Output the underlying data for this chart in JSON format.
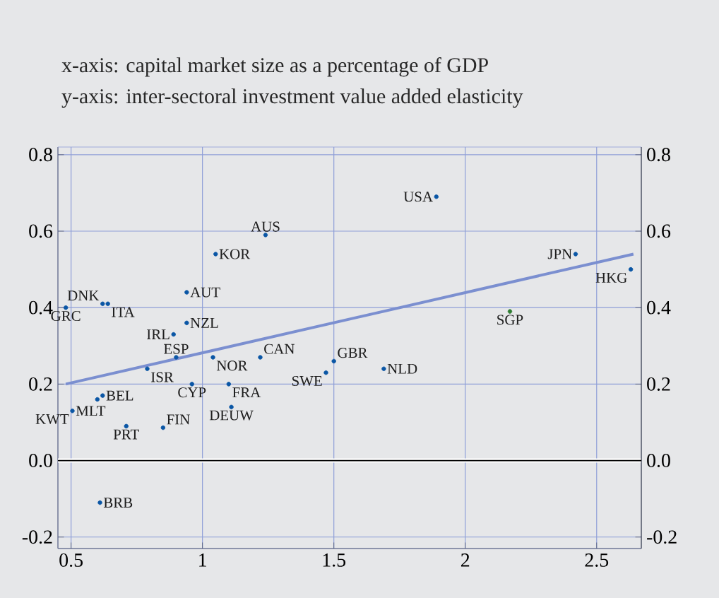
{
  "chart_data": {
    "type": "scatter",
    "title": "x-axis: capital market size as a percentage of GDP",
    "subtitle": "y-axis: inter-sectoral investment value added elasticity",
    "xlim": [
      0.45,
      2.67
    ],
    "ylim": [
      -0.23,
      0.82
    ],
    "y2lim": [
      -0.23,
      0.82
    ],
    "xticks": [
      0.5,
      1,
      1.5,
      2,
      2.5
    ],
    "yticks": [
      -0.2,
      {
        "value": 0,
        "label": "0.0"
      },
      0.2,
      0.4,
      0.6,
      0.8
    ],
    "y2ticks": [
      -0.2,
      {
        "value": 0,
        "label": "0.0"
      },
      0.2,
      0.4,
      0.6,
      0.8
    ],
    "grid": true,
    "ref_lines": [
      {
        "axis": "y",
        "value": 0,
        "color": "#000000"
      }
    ],
    "series": [
      {
        "marker": "circle",
        "x": [
          0.48,
          0.62,
          0.64,
          0.94,
          0.94,
          0.89,
          0.9,
          0.79,
          1.04,
          1.22,
          1.47,
          1.5,
          0.96,
          1.1,
          0.62,
          0.6,
          0.505,
          0.71,
          0.85,
          1.11,
          1.05,
          1.24,
          1.89,
          2.42,
          2.63,
          2.17,
          1.69,
          0.61
        ],
        "values": [
          0.4,
          0.41,
          0.41,
          0.44,
          0.36,
          0.33,
          0.27,
          0.24,
          0.27,
          0.27,
          0.23,
          0.26,
          0.2,
          0.2,
          0.17,
          0.16,
          0.13,
          0.09,
          0.086,
          0.14,
          0.54,
          0.59,
          0.69,
          0.54,
          0.5,
          0.39,
          0.24,
          -0.11
        ],
        "colors": [
          "#0a56a5",
          "#0a56a5",
          "#0a56a5",
          "#0a56a5",
          "#0a56a5",
          "#0a56a5",
          "#0a56a5",
          "#0a56a5",
          "#0a56a5",
          "#0a56a5",
          "#0a56a5",
          "#0a56a5",
          "#0a56a5",
          "#0a56a5",
          "#0a56a5",
          "#0a56a5",
          "#0a56a5",
          "#0a56a5",
          "#0a56a5",
          "#0a56a5",
          "#0a56a5",
          "#0a56a5",
          "#0a56a5",
          "#0a56a5",
          "#0a56a5",
          "#2e7d32",
          "#0a56a5",
          "#0a56a5"
        ]
      },
      {
        "type": "line",
        "marker": "none",
        "line_style": "solid",
        "color": "#7b8fd0",
        "x": [
          0.48,
          2.64
        ],
        "values": [
          0.2,
          0.54
        ]
      }
    ],
    "annotations": [
      {
        "text": "GRC",
        "x": 0.48,
        "y": 0.4
      },
      {
        "text": "DNK",
        "x": 0.62,
        "y": 0.41
      },
      {
        "text": "ITA",
        "x": 0.64,
        "y": 0.41
      },
      {
        "text": "AUT",
        "x": 0.94,
        "y": 0.44
      },
      {
        "text": "NZL",
        "x": 0.94,
        "y": 0.36
      },
      {
        "text": "IRL",
        "x": 0.89,
        "y": 0.33
      },
      {
        "text": "ESP",
        "x": 0.9,
        "y": 0.27
      },
      {
        "text": "ISR",
        "x": 0.79,
        "y": 0.24
      },
      {
        "text": "NOR",
        "x": 1.04,
        "y": 0.27
      },
      {
        "text": "CAN",
        "x": 1.22,
        "y": 0.27
      },
      {
        "text": "SWE",
        "x": 1.47,
        "y": 0.23
      },
      {
        "text": "GBR",
        "x": 1.5,
        "y": 0.26
      },
      {
        "text": "CYP",
        "x": 0.96,
        "y": 0.2
      },
      {
        "text": "FRA",
        "x": 1.1,
        "y": 0.2
      },
      {
        "text": "BEL",
        "x": 0.62,
        "y": 0.17
      },
      {
        "text": "MLT",
        "x": 0.505,
        "y": 0.13
      },
      {
        "text": "KWT",
        "x": 0.505,
        "y": 0.13
      },
      {
        "text": "PRT",
        "x": 0.71,
        "y": 0.09
      },
      {
        "text": "FIN",
        "x": 0.85,
        "y": 0.086
      },
      {
        "text": "DEUW",
        "x": 1.11,
        "y": 0.14
      },
      {
        "text": "KOR",
        "x": 1.05,
        "y": 0.54
      },
      {
        "text": "AUS",
        "x": 1.24,
        "y": 0.59
      },
      {
        "text": "USA",
        "x": 1.89,
        "y": 0.69
      },
      {
        "text": "JPN",
        "x": 2.42,
        "y": 0.54
      },
      {
        "text": "HKG",
        "x": 2.63,
        "y": 0.5
      },
      {
        "text": "SGP",
        "x": 2.17,
        "y": 0.39
      },
      {
        "text": "NLD",
        "x": 1.69,
        "y": 0.24
      },
      {
        "text": "BRB",
        "x": 0.61,
        "y": -0.11
      }
    ]
  }
}
